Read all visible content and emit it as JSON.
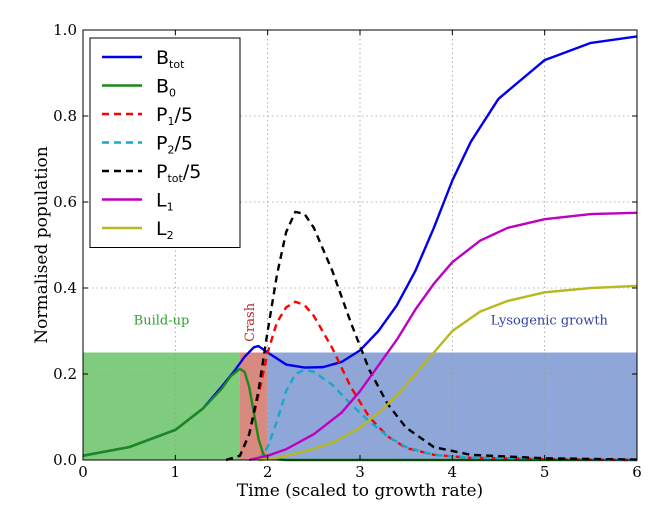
{
  "chart_data": {
    "type": "line",
    "xlabel": "Time (scaled to growth rate)",
    "ylabel": "Normalised population",
    "xlim": [
      0,
      6
    ],
    "ylim": [
      0,
      1
    ],
    "xticks": [
      "0",
      "1",
      "2",
      "3",
      "4",
      "5",
      "6"
    ],
    "yticks": [
      "0.0",
      "0.2",
      "0.4",
      "0.6",
      "0.8",
      "1.0"
    ],
    "grid": true,
    "legend_position": "top-left",
    "regions": [
      {
        "label": "Build-up",
        "x": [
          0,
          1.7
        ],
        "y": [
          0,
          0.25
        ],
        "color": "#7fcc7f",
        "label_color": "#2ca02c"
      },
      {
        "label": "Crash",
        "x": [
          1.7,
          2.0
        ],
        "y": [
          0,
          0.25
        ],
        "color": "#d98a80",
        "label_color": "#b03030"
      },
      {
        "label": "Lysogenic growth",
        "x": [
          2.0,
          6.0
        ],
        "y": [
          0,
          0.25
        ],
        "color": "#8fa6d8",
        "label_color": "#3040a0"
      }
    ],
    "series": [
      {
        "name": "B",
        "sub": "tot",
        "suffix": "",
        "color": "#0000ee",
        "dash": false,
        "points": [
          [
            0,
            0.01
          ],
          [
            0.5,
            0.03
          ],
          [
            1.0,
            0.07
          ],
          [
            1.3,
            0.12
          ],
          [
            1.5,
            0.17
          ],
          [
            1.65,
            0.21
          ],
          [
            1.75,
            0.24
          ],
          [
            1.85,
            0.262
          ],
          [
            1.9,
            0.265
          ],
          [
            2.0,
            0.25
          ],
          [
            2.2,
            0.222
          ],
          [
            2.4,
            0.215
          ],
          [
            2.6,
            0.216
          ],
          [
            2.8,
            0.228
          ],
          [
            3.0,
            0.255
          ],
          [
            3.2,
            0.3
          ],
          [
            3.4,
            0.36
          ],
          [
            3.6,
            0.44
          ],
          [
            3.8,
            0.54
          ],
          [
            4.0,
            0.65
          ],
          [
            4.2,
            0.74
          ],
          [
            4.5,
            0.84
          ],
          [
            5.0,
            0.93
          ],
          [
            5.5,
            0.97
          ],
          [
            6.0,
            0.985
          ]
        ]
      },
      {
        "name": "B",
        "sub": "0",
        "suffix": "",
        "color": "#1a8a1a",
        "dash": false,
        "points": [
          [
            0,
            0.01
          ],
          [
            0.5,
            0.03
          ],
          [
            1.0,
            0.07
          ],
          [
            1.3,
            0.12
          ],
          [
            1.5,
            0.165
          ],
          [
            1.6,
            0.195
          ],
          [
            1.7,
            0.212
          ],
          [
            1.75,
            0.205
          ],
          [
            1.8,
            0.17
          ],
          [
            1.85,
            0.11
          ],
          [
            1.9,
            0.05
          ],
          [
            1.95,
            0.015
          ],
          [
            2.0,
            0.003
          ],
          [
            2.2,
            0.0
          ],
          [
            6.0,
            0.0
          ]
        ]
      },
      {
        "name": "P",
        "sub": "1",
        "suffix": "/5",
        "color": "#ff0000",
        "dash": true,
        "points": [
          [
            1.55,
            0.0
          ],
          [
            1.7,
            0.01
          ],
          [
            1.8,
            0.06
          ],
          [
            1.9,
            0.15
          ],
          [
            2.0,
            0.25
          ],
          [
            2.1,
            0.32
          ],
          [
            2.2,
            0.355
          ],
          [
            2.3,
            0.368
          ],
          [
            2.4,
            0.36
          ],
          [
            2.5,
            0.335
          ],
          [
            2.7,
            0.26
          ],
          [
            2.9,
            0.17
          ],
          [
            3.1,
            0.1
          ],
          [
            3.3,
            0.055
          ],
          [
            3.5,
            0.028
          ],
          [
            3.8,
            0.012
          ],
          [
            4.2,
            0.005
          ],
          [
            5.0,
            0.002
          ],
          [
            6.0,
            0.0
          ]
        ]
      },
      {
        "name": "P",
        "sub": "2",
        "suffix": "/5",
        "color": "#1aa7c8",
        "dash": true,
        "points": [
          [
            1.9,
            0.0
          ],
          [
            2.0,
            0.03
          ],
          [
            2.1,
            0.09
          ],
          [
            2.2,
            0.16
          ],
          [
            2.3,
            0.2
          ],
          [
            2.4,
            0.21
          ],
          [
            2.5,
            0.205
          ],
          [
            2.7,
            0.175
          ],
          [
            2.9,
            0.13
          ],
          [
            3.1,
            0.09
          ],
          [
            3.3,
            0.055
          ],
          [
            3.5,
            0.03
          ],
          [
            3.8,
            0.012
          ],
          [
            4.2,
            0.005
          ],
          [
            5.0,
            0.002
          ],
          [
            6.0,
            0.0
          ]
        ]
      },
      {
        "name": "P",
        "sub": "tot",
        "suffix": "/5",
        "color": "#000000",
        "dash": true,
        "points": [
          [
            1.55,
            0.0
          ],
          [
            1.7,
            0.01
          ],
          [
            1.8,
            0.06
          ],
          [
            1.9,
            0.16
          ],
          [
            2.0,
            0.3
          ],
          [
            2.1,
            0.43
          ],
          [
            2.2,
            0.53
          ],
          [
            2.3,
            0.577
          ],
          [
            2.4,
            0.572
          ],
          [
            2.5,
            0.54
          ],
          [
            2.7,
            0.44
          ],
          [
            2.9,
            0.32
          ],
          [
            3.1,
            0.21
          ],
          [
            3.3,
            0.13
          ],
          [
            3.5,
            0.075
          ],
          [
            3.8,
            0.03
          ],
          [
            4.2,
            0.012
          ],
          [
            5.0,
            0.004
          ],
          [
            6.0,
            0.001
          ]
        ]
      },
      {
        "name": "L",
        "sub": "1",
        "suffix": "",
        "color": "#c000c0",
        "dash": false,
        "points": [
          [
            1.8,
            0.0
          ],
          [
            2.0,
            0.01
          ],
          [
            2.2,
            0.025
          ],
          [
            2.5,
            0.06
          ],
          [
            2.8,
            0.11
          ],
          [
            3.0,
            0.16
          ],
          [
            3.2,
            0.22
          ],
          [
            3.4,
            0.28
          ],
          [
            3.6,
            0.35
          ],
          [
            3.8,
            0.41
          ],
          [
            4.0,
            0.46
          ],
          [
            4.3,
            0.51
          ],
          [
            4.6,
            0.54
          ],
          [
            5.0,
            0.56
          ],
          [
            5.5,
            0.572
          ],
          [
            6.0,
            0.575
          ]
        ]
      },
      {
        "name": "L",
        "sub": "2",
        "suffix": "",
        "color": "#b8b820",
        "dash": false,
        "points": [
          [
            1.9,
            0.0
          ],
          [
            2.1,
            0.005
          ],
          [
            2.4,
            0.02
          ],
          [
            2.7,
            0.04
          ],
          [
            3.0,
            0.075
          ],
          [
            3.2,
            0.11
          ],
          [
            3.4,
            0.15
          ],
          [
            3.6,
            0.2
          ],
          [
            3.8,
            0.25
          ],
          [
            4.0,
            0.3
          ],
          [
            4.3,
            0.345
          ],
          [
            4.6,
            0.37
          ],
          [
            5.0,
            0.39
          ],
          [
            5.5,
            0.4
          ],
          [
            6.0,
            0.405
          ]
        ]
      }
    ]
  }
}
